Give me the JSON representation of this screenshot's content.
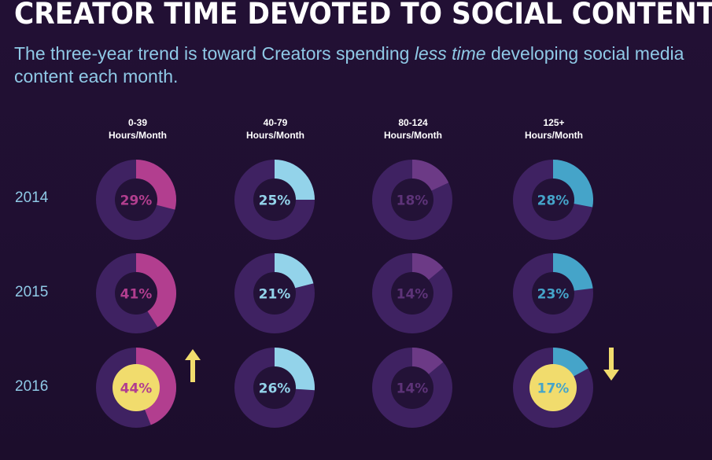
{
  "title": "CREATOR TIME DEVOTED TO SOCIAL CONTENT",
  "subtitle_before": "The three-year trend is toward Creators spending ",
  "subtitle_emph": "less time",
  "subtitle_after": " developing social media content each month.",
  "colors": {
    "track": "#3f2262",
    "hole": "#231237",
    "highlight": "#f1dc6d",
    "series": [
      "#b23e8f",
      "#93d3ea",
      "#6c3a86",
      "#45a4c9"
    ],
    "label": [
      "#b23e8f",
      "#93d3ea",
      "#5d3378",
      "#45a4c9"
    ]
  },
  "chart_data": {
    "type": "pie",
    "categories": [
      "0-39 Hours/Month",
      "40-79 Hours/Month",
      "80-124 Hours/Month",
      "125+ Hours/Month"
    ],
    "category_lines": [
      [
        "0-39",
        "Hours/Month"
      ],
      [
        "40-79",
        "Hours/Month"
      ],
      [
        "80-124",
        "Hours/Month"
      ],
      [
        "125+",
        "Hours/Month"
      ]
    ],
    "rows": [
      "2014",
      "2015",
      "2016"
    ],
    "values": [
      [
        29,
        25,
        18,
        28
      ],
      [
        41,
        21,
        14,
        23
      ],
      [
        44,
        26,
        14,
        17
      ]
    ],
    "labels": [
      [
        "29%",
        "25%",
        "18%",
        "28%"
      ],
      [
        "41%",
        "21%",
        "14%",
        "23%"
      ],
      [
        "44%",
        "26%",
        "14%",
        "17%"
      ]
    ],
    "highlighted": [
      [
        2,
        0
      ],
      [
        2,
        3
      ]
    ],
    "annotations": [
      {
        "row": 2,
        "col": 0,
        "icon": "arrow-up-icon",
        "direction": "up"
      },
      {
        "row": 2,
        "col": 3,
        "icon": "arrow-down-icon",
        "direction": "down"
      }
    ]
  }
}
